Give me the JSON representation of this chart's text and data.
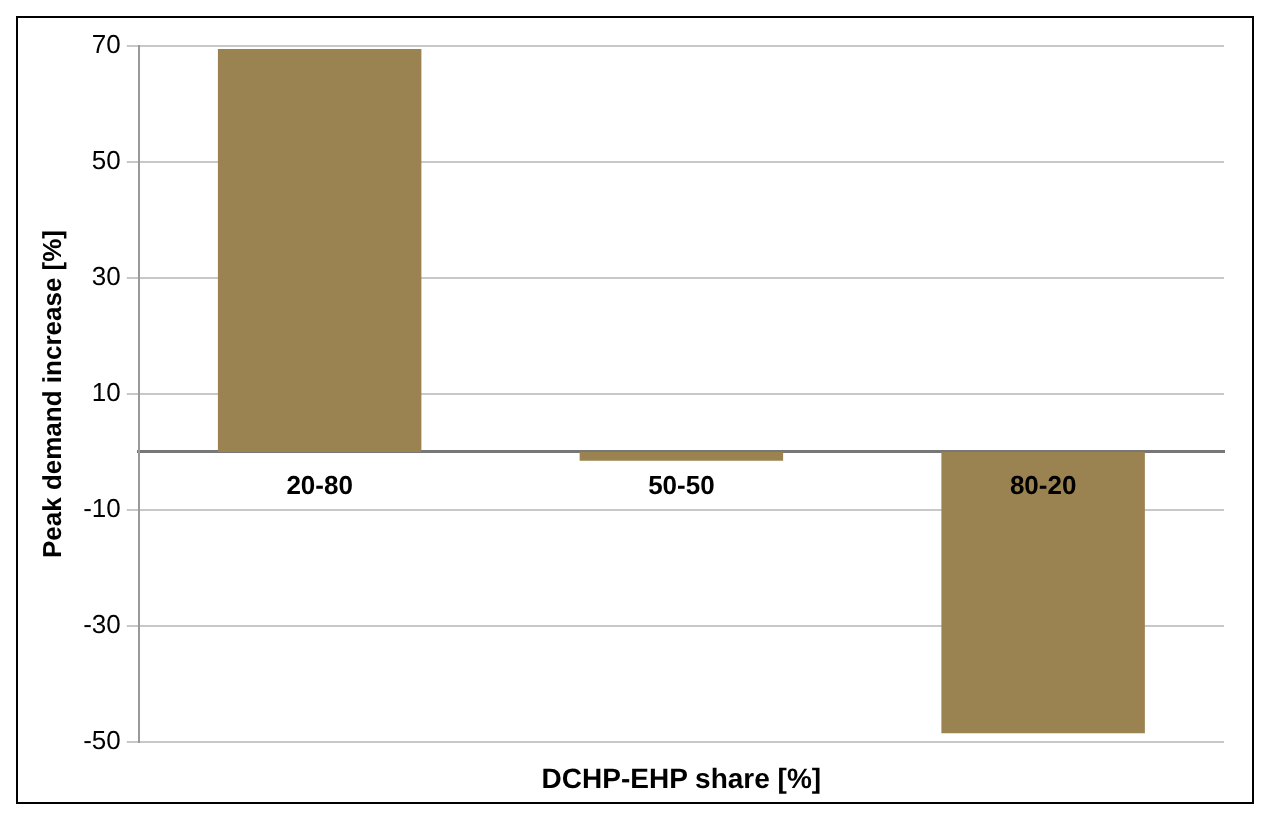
{
  "chart_data": {
    "type": "bar",
    "xlabel": "DCHP-EHP share [%]",
    "ylabel": "Peak demand increase [%]",
    "categories": [
      "20-80",
      "50-50",
      "80-20"
    ],
    "values": [
      69.5,
      -1.5,
      -48.5
    ],
    "color": "#9a8350",
    "ylim": [
      -50,
      70
    ],
    "yticks": [
      -50,
      -30,
      -10,
      10,
      30,
      50,
      70
    ],
    "grid": "y"
  }
}
